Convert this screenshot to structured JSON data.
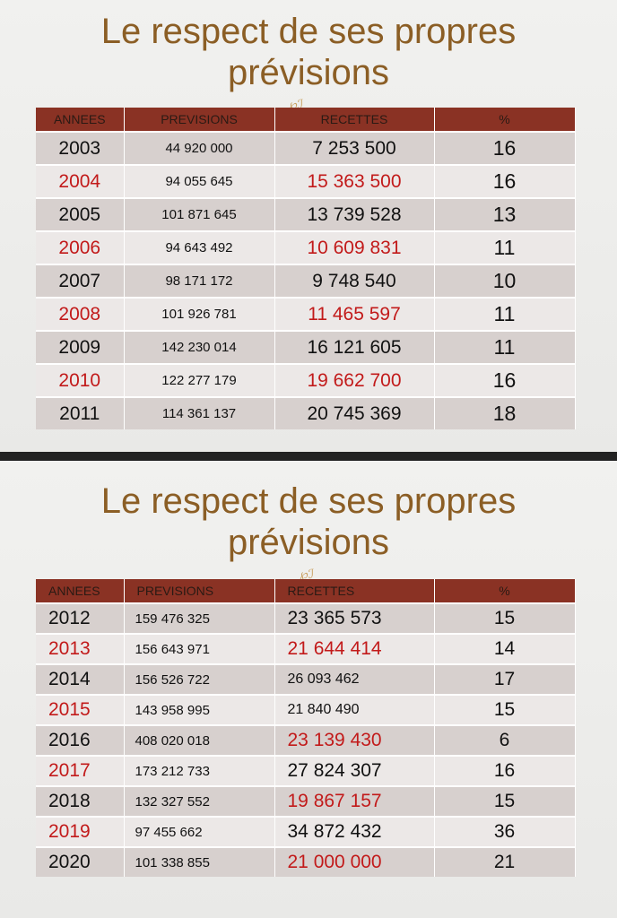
{
  "colors": {
    "title": "#8b5e25",
    "header_bg": "#8a3224",
    "highlight_text": "#c21a1a",
    "row_dark": "#d7d0ce",
    "row_light": "#ece8e7"
  },
  "slide1": {
    "title_line1": "Le respect de ses propres",
    "title_line2": "prévisions",
    "headers": {
      "year": "ANNEES",
      "prev": "PREVISIONS",
      "rec": "RECETTES",
      "pct": "%"
    },
    "rows": [
      {
        "year": "2003",
        "prev": "44 920 000",
        "rec": "7 253 500",
        "pct": "16"
      },
      {
        "year": "2004",
        "prev": "94 055 645",
        "rec": "15 363 500",
        "pct": "16"
      },
      {
        "year": "2005",
        "prev": "101 871 645",
        "rec": "13 739 528",
        "pct": "13"
      },
      {
        "year": "2006",
        "prev": "94 643 492",
        "rec": "10 609 831",
        "pct": "11"
      },
      {
        "year": "2007",
        "prev": "98 171 172",
        "rec": "9 748 540",
        "pct": "10"
      },
      {
        "year": "2008",
        "prev": "101 926 781",
        "rec": "11 465 597",
        "pct": "11"
      },
      {
        "year": "2009",
        "prev": "142 230 014",
        "rec": "16 121 605",
        "pct": "11"
      },
      {
        "year": "2010",
        "prev": "122 277 179",
        "rec": "19 662 700",
        "pct": "16"
      },
      {
        "year": "2011",
        "prev": "114 361 137",
        "rec": "20 745 369",
        "pct": "18"
      }
    ]
  },
  "slide2": {
    "title_line1": "Le respect de ses propres",
    "title_line2": "prévisions",
    "headers": {
      "year": "ANNEES",
      "prev": "PREVISIONS",
      "rec": "RECETTES",
      "pct": "%"
    },
    "rows": [
      {
        "year": "2012",
        "prev": "159 476 325",
        "rec": "23 365 573",
        "pct": "15"
      },
      {
        "year": "2013",
        "prev": "156 643 971",
        "rec": "21 644 414",
        "pct": "14"
      },
      {
        "year": "2014",
        "prev": "156 526 722",
        "rec": "26 093 462",
        "pct": "17"
      },
      {
        "year": "2015",
        "prev": "143 958 995",
        "rec": "21 840 490",
        "pct": "15"
      },
      {
        "year": "2016",
        "prev": "408 020 018",
        "rec": "23 139 430",
        "pct": "6"
      },
      {
        "year": "2017",
        "prev": "173 212 733",
        "rec": "27 824 307",
        "pct": "16"
      },
      {
        "year": "2018",
        "prev": "132 327 552",
        "rec": "19 867 157",
        "pct": "15"
      },
      {
        "year": "2019",
        "prev": "97 455 662",
        "rec": "34 872 432",
        "pct": "36"
      },
      {
        "year": "2020",
        "prev": "101 338 855",
        "rec": "21 000 000",
        "pct": "21"
      }
    ]
  }
}
